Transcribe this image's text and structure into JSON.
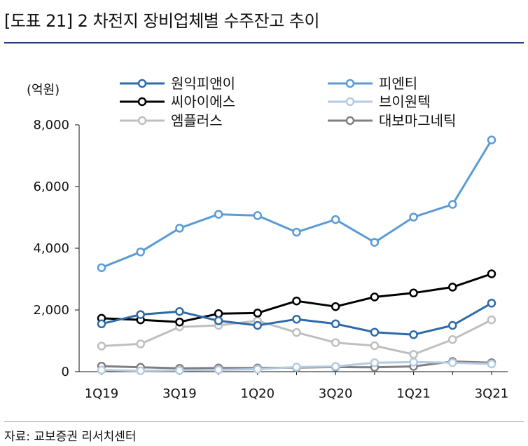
{
  "header": {
    "title": "[도표 21] 2 차전지 장비업체별 수주잔고 추이"
  },
  "footer": {
    "source": "자료: 교보증권 리서치센터"
  },
  "chart_data": {
    "type": "line",
    "title": "[도표 21] 2 차전지 장비업체별 수주잔고 추이",
    "ylabel": "(억원)",
    "xlabel": "",
    "ylim": [
      0,
      8000
    ],
    "yticks": [
      0,
      2000,
      4000,
      6000,
      8000
    ],
    "ytick_labels": [
      "0",
      "2,000",
      "4,000",
      "6,000",
      "8,000"
    ],
    "categories": [
      "1Q19",
      "2Q19",
      "3Q19",
      "4Q19",
      "1Q20",
      "2Q20",
      "3Q20",
      "4Q20",
      "1Q21",
      "2Q21",
      "3Q21"
    ],
    "xtick_labels": [
      "1Q19",
      "",
      "3Q19",
      "",
      "1Q20",
      "",
      "3Q20",
      "",
      "1Q21",
      "",
      "3Q21"
    ],
    "legend_position": "top",
    "series": [
      {
        "name": "원익피앤이",
        "color": "#2e6aa8",
        "values": [
          1550,
          1850,
          1950,
          1650,
          1500,
          1700,
          1550,
          1280,
          1200,
          1500,
          2220
        ]
      },
      {
        "name": "피엔티",
        "color": "#5b9bd5",
        "values": [
          3370,
          3880,
          4650,
          5100,
          5060,
          4520,
          4930,
          4190,
          5010,
          5420,
          7510
        ]
      },
      {
        "name": "씨아이에스",
        "color": "#000000",
        "values": [
          1730,
          1680,
          1610,
          1880,
          1900,
          2290,
          2110,
          2420,
          2550,
          2740,
          3170
        ]
      },
      {
        "name": "브이원텍",
        "color": "#b4cbe2",
        "values": [
          50,
          30,
          40,
          60,
          80,
          150,
          170,
          290,
          310,
          290,
          250
        ]
      },
      {
        "name": "엠플러스",
        "color": "#bfbfbf",
        "values": [
          830,
          900,
          1450,
          1500,
          1650,
          1270,
          940,
          840,
          560,
          1040,
          1680
        ]
      },
      {
        "name": "대보마그네틱",
        "color": "#808080",
        "values": [
          180,
          140,
          110,
          120,
          120,
          130,
          150,
          140,
          170,
          330,
          290
        ]
      }
    ]
  }
}
